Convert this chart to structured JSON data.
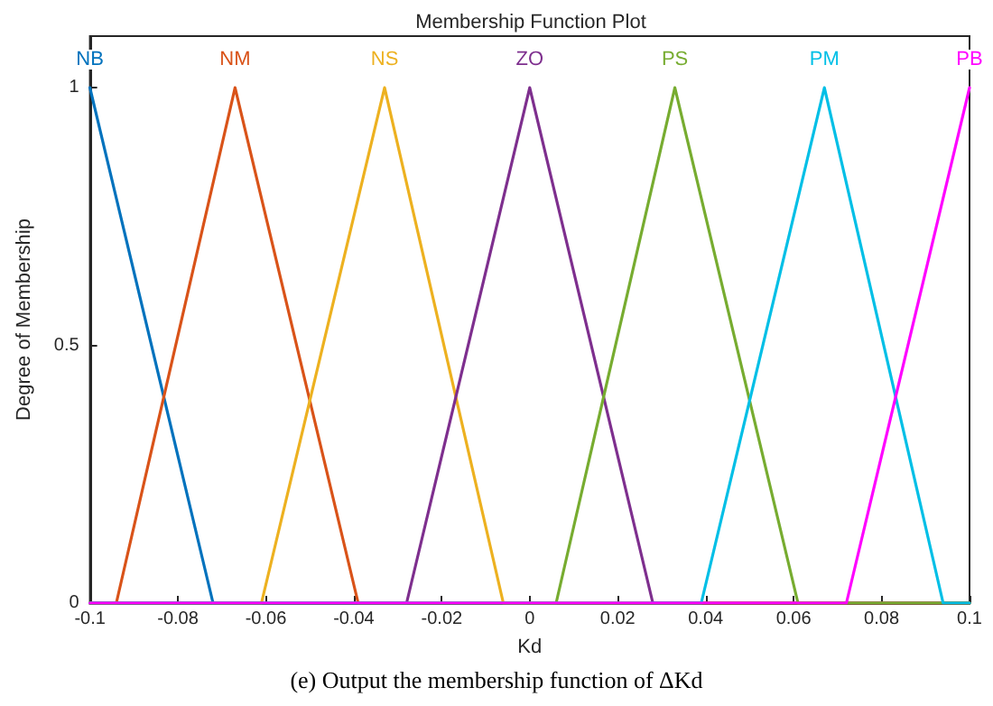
{
  "chart_data": {
    "type": "line",
    "title": "Membership Function Plot",
    "xlabel": "Kd",
    "ylabel": "Degree of Membership",
    "annotations": [
      "(e) Output the membership function of ΔKd"
    ],
    "xlim": [
      -0.1,
      0.1
    ],
    "xticks": [
      -0.1,
      -0.08,
      -0.06,
      -0.04,
      -0.02,
      0,
      0.02,
      0.04,
      0.06,
      0.08,
      0.1
    ],
    "ylim": [
      0,
      1.1
    ],
    "yticks": [
      0,
      0.5,
      1
    ],
    "grid": false,
    "legend": false,
    "marker": "none",
    "line_style": "solid",
    "series": [
      {
        "name": "NB",
        "color": "#0072bd",
        "x": [
          -0.1,
          -0.072
        ],
        "values": [
          1,
          0
        ]
      },
      {
        "name": "NM",
        "color": "#d95319",
        "x": [
          -0.1,
          -0.094,
          -0.067,
          -0.039,
          0.1
        ],
        "values": [
          0,
          0,
          1,
          0,
          0
        ]
      },
      {
        "name": "NS",
        "color": "#edb120",
        "x": [
          -0.1,
          -0.061,
          -0.033,
          -0.006,
          0.1
        ],
        "values": [
          0,
          0,
          1,
          0,
          0
        ]
      },
      {
        "name": "ZO",
        "color": "#7e2f8e",
        "x": [
          -0.1,
          -0.028,
          0,
          0.028,
          0.1
        ],
        "values": [
          0,
          0,
          1,
          0,
          0
        ]
      },
      {
        "name": "PS",
        "color": "#77ac30",
        "x": [
          -0.1,
          0.006,
          0.033,
          0.061,
          0.1
        ],
        "values": [
          0,
          0,
          1,
          0,
          0
        ]
      },
      {
        "name": "PM",
        "color": "#00bfe6",
        "x": [
          -0.1,
          0.039,
          0.067,
          0.094,
          0.1
        ],
        "values": [
          0,
          0,
          1,
          0,
          0
        ]
      },
      {
        "name": "PB",
        "color": "#ff00ff",
        "x": [
          -0.1,
          0.072,
          0.1
        ],
        "values": [
          0,
          0,
          1
        ]
      }
    ]
  }
}
